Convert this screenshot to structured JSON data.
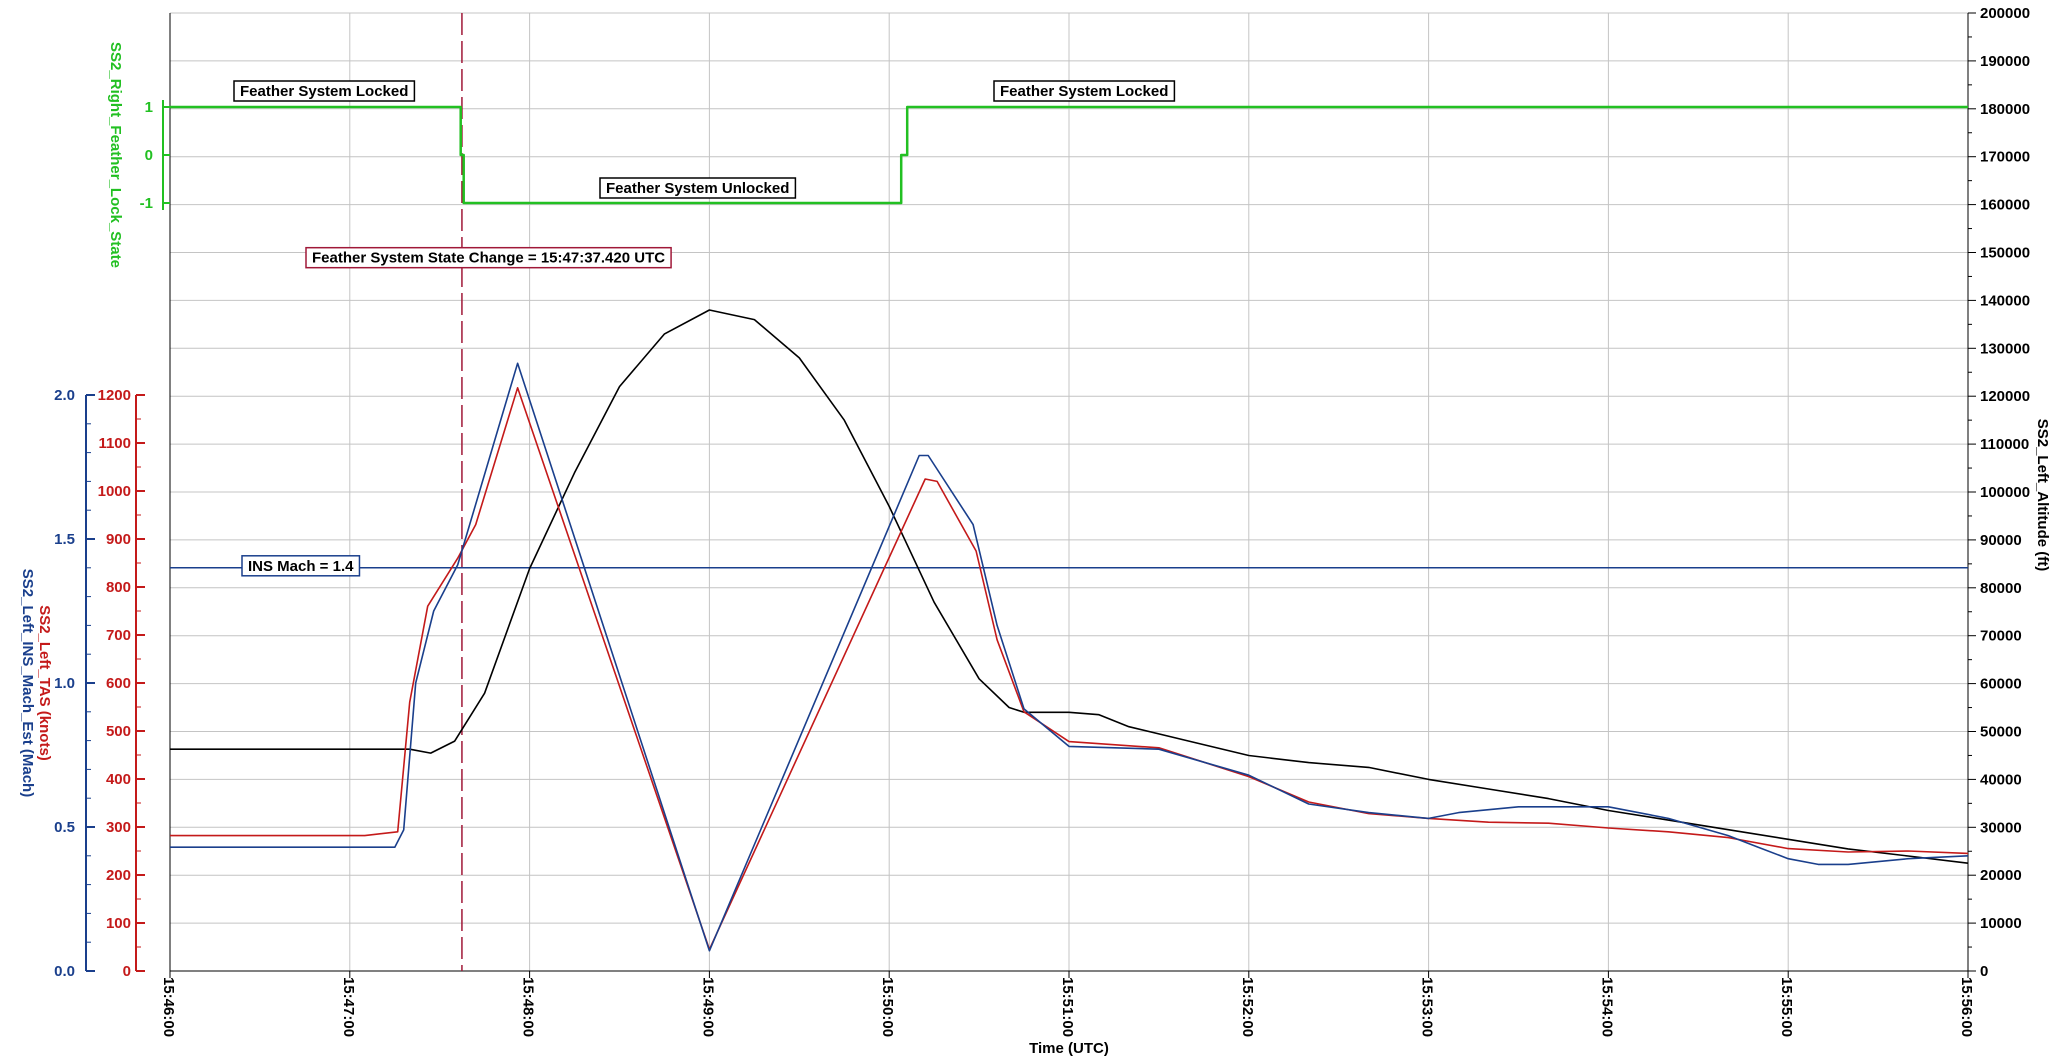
{
  "chart_data": {
    "type": "line",
    "x_axis": {
      "label": "Time (UTC)",
      "range": [
        "15:46:00",
        "15:56:00"
      ],
      "tick_labels": [
        "15:46:00",
        "15:47:00",
        "15:48:00",
        "15:49:00",
        "15:50:00",
        "15:51:00",
        "15:52:00",
        "15:53:00",
        "15:54:00",
        "15:55:00",
        "15:56:00"
      ],
      "gridlines": true
    },
    "axes": {
      "feather_state": {
        "label": "SS2_Right_Feather_Lock_State",
        "ticks": [
          1,
          0,
          -1
        ],
        "color": "#22c022"
      },
      "tas": {
        "label": "SS2_Left_TAS (knots)",
        "range": [
          0,
          1200
        ],
        "ticks": [
          0,
          100,
          200,
          300,
          400,
          500,
          600,
          700,
          800,
          900,
          1000,
          1100,
          1200
        ],
        "color": "#c41a1a"
      },
      "mach": {
        "label": "SS2_Left_INS_Mach_Est (Mach)",
        "range": [
          0,
          2
        ],
        "ticks": [
          "0.0",
          "0.5",
          "1.0",
          "1.5",
          "2.0"
        ],
        "color": "#1a3f8c"
      },
      "altitude": {
        "label": "SS2_Left_Altitude (ft)",
        "range": [
          0,
          200000
        ],
        "ticks": [
          0,
          10000,
          20000,
          30000,
          40000,
          50000,
          60000,
          70000,
          80000,
          90000,
          100000,
          110000,
          120000,
          130000,
          140000,
          150000,
          160000,
          170000,
          180000,
          190000,
          200000
        ],
        "color": "#000000"
      }
    },
    "series": [
      {
        "name": "SS2_Right_Feather_Lock_State",
        "axis": "feather_state",
        "color": "#22c022",
        "points": [
          [
            "15:46:00",
            1
          ],
          [
            "15:47:37",
            1
          ],
          [
            "15:47:37",
            0
          ],
          [
            "15:47:38",
            0
          ],
          [
            "15:47:38",
            -1
          ],
          [
            "15:50:04",
            -1
          ],
          [
            "15:50:04",
            0
          ],
          [
            "15:50:06",
            0
          ],
          [
            "15:50:06",
            1
          ],
          [
            "15:56:00",
            1
          ]
        ]
      },
      {
        "name": "SS2_Left_TAS",
        "axis": "tas",
        "color": "#c41a1a",
        "points": [
          [
            "15:46:00",
            282
          ],
          [
            "15:47:05",
            282
          ],
          [
            "15:47:16",
            290
          ],
          [
            "15:47:20",
            560
          ],
          [
            "15:47:26",
            760
          ],
          [
            "15:47:36",
            860
          ],
          [
            "15:47:42",
            930
          ],
          [
            "15:47:56",
            1215
          ],
          [
            "15:49:00",
            45
          ],
          [
            "15:50:12",
            1025
          ],
          [
            "15:50:16",
            1020
          ],
          [
            "15:50:29",
            875
          ],
          [
            "15:50:36",
            690
          ],
          [
            "15:50:45",
            540
          ],
          [
            "15:51:00",
            478
          ],
          [
            "15:51:30",
            465
          ],
          [
            "15:52:00",
            405
          ],
          [
            "15:52:20",
            352
          ],
          [
            "15:52:40",
            328
          ],
          [
            "15:53:00",
            318
          ],
          [
            "15:53:20",
            310
          ],
          [
            "15:53:40",
            308
          ],
          [
            "15:54:00",
            298
          ],
          [
            "15:54:20",
            290
          ],
          [
            "15:54:40",
            278
          ],
          [
            "15:55:00",
            255
          ],
          [
            "15:55:20",
            248
          ],
          [
            "15:55:40",
            250
          ],
          [
            "15:56:00",
            245
          ]
        ]
      },
      {
        "name": "SS2_Left_INS_Mach_Est",
        "axis": "mach",
        "color": "#1a3f8c",
        "points": [
          [
            "15:46:00",
            0.43
          ],
          [
            "15:47:15",
            0.43
          ],
          [
            "15:47:18",
            0.49
          ],
          [
            "15:47:22",
            1.0
          ],
          [
            "15:47:28",
            1.25
          ],
          [
            "15:47:36",
            1.41
          ],
          [
            "15:47:56",
            2.11
          ],
          [
            "15:49:00",
            0.07
          ],
          [
            "15:50:10",
            1.79
          ],
          [
            "15:50:13",
            1.79
          ],
          [
            "15:50:28",
            1.55
          ],
          [
            "15:50:36",
            1.2
          ],
          [
            "15:50:45",
            0.91
          ],
          [
            "15:51:00",
            0.78
          ],
          [
            "15:51:30",
            0.77
          ],
          [
            "15:52:00",
            0.68
          ],
          [
            "15:52:20",
            0.58
          ],
          [
            "15:52:40",
            0.55
          ],
          [
            "15:53:00",
            0.53
          ],
          [
            "15:53:10",
            0.55
          ],
          [
            "15:53:30",
            0.57
          ],
          [
            "15:53:50",
            0.57
          ],
          [
            "15:54:00",
            0.57
          ],
          [
            "15:54:20",
            0.53
          ],
          [
            "15:54:40",
            0.47
          ],
          [
            "15:54:50",
            0.43
          ],
          [
            "15:55:00",
            0.39
          ],
          [
            "15:55:10",
            0.37
          ],
          [
            "15:55:20",
            0.37
          ],
          [
            "15:55:40",
            0.39
          ],
          [
            "15:56:00",
            0.4
          ]
        ]
      },
      {
        "name": "SS2_Left_Altitude",
        "axis": "altitude",
        "color": "#000000",
        "points": [
          [
            "15:46:00",
            46300
          ],
          [
            "15:47:20",
            46300
          ],
          [
            "15:47:27",
            45500
          ],
          [
            "15:47:35",
            48000
          ],
          [
            "15:47:45",
            58000
          ],
          [
            "15:48:00",
            84000
          ],
          [
            "15:48:15",
            104000
          ],
          [
            "15:48:30",
            122000
          ],
          [
            "15:48:45",
            133000
          ],
          [
            "15:49:00",
            138000
          ],
          [
            "15:49:15",
            136000
          ],
          [
            "15:49:30",
            128000
          ],
          [
            "15:49:45",
            115000
          ],
          [
            "15:50:00",
            97000
          ],
          [
            "15:50:15",
            77000
          ],
          [
            "15:50:30",
            61000
          ],
          [
            "15:50:40",
            55000
          ],
          [
            "15:50:45",
            54000
          ],
          [
            "15:51:00",
            54000
          ],
          [
            "15:51:10",
            53500
          ],
          [
            "15:51:20",
            51000
          ],
          [
            "15:51:40",
            48000
          ],
          [
            "15:52:00",
            45000
          ],
          [
            "15:52:20",
            43500
          ],
          [
            "15:52:40",
            42500
          ],
          [
            "15:53:00",
            40000
          ],
          [
            "15:53:20",
            38000
          ],
          [
            "15:53:40",
            36000
          ],
          [
            "15:54:00",
            33500
          ],
          [
            "15:54:20",
            31500
          ],
          [
            "15:54:40",
            29500
          ],
          [
            "15:55:00",
            27500
          ],
          [
            "15:55:20",
            25500
          ],
          [
            "15:55:40",
            24000
          ],
          [
            "15:56:00",
            22500
          ]
        ]
      }
    ],
    "reference_lines": [
      {
        "type": "vertical",
        "x": "15:47:37.420",
        "color": "#a01838",
        "style": "dashed"
      },
      {
        "type": "horizontal",
        "axis": "mach",
        "y": 1.4,
        "color": "#1a3f8c"
      }
    ],
    "annotations": [
      {
        "text": "Feather System Locked",
        "x": "15:46:40",
        "y": 1,
        "axis": "feather_state",
        "border": "#000000"
      },
      {
        "text": "Feather System Unlocked",
        "x": "15:49:10",
        "y": -1,
        "axis": "feather_state",
        "border": "#000000"
      },
      {
        "text": "Feather System Locked",
        "x": "15:51:00",
        "y": 1,
        "axis": "feather_state",
        "border": "#000000"
      },
      {
        "text": "Feather System State Change = 15:47:37.420 UTC",
        "x": "15:47:37.420",
        "y": 148500,
        "axis": "altitude",
        "border": "#a01838"
      },
      {
        "text": "INS Mach = 1.4",
        "x": "15:46:40",
        "y": 1.4,
        "axis": "mach",
        "border": "#1a3f8c"
      }
    ]
  }
}
